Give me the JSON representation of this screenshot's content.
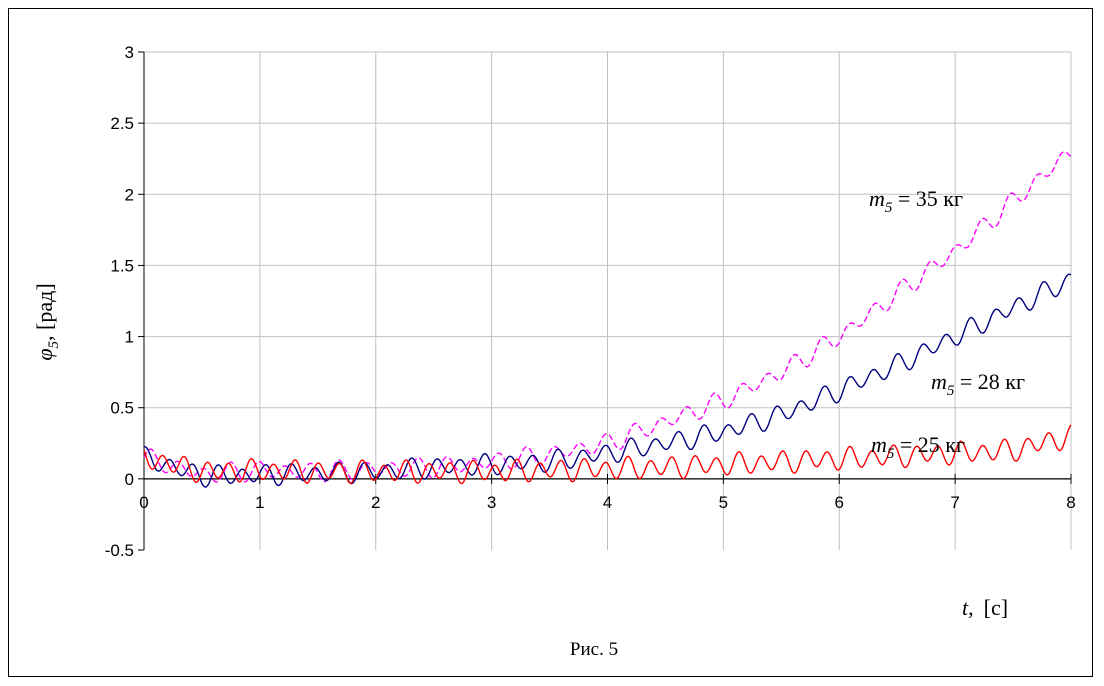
{
  "caption": "Рис. 5",
  "chart_data": {
    "type": "line",
    "xlabel": {
      "var": "t,",
      "unit": "[с]"
    },
    "ylabel": {
      "var": "φ",
      "sub": "5",
      "unit": ", [рад]"
    },
    "xlim": [
      0,
      8
    ],
    "ylim": [
      -0.5,
      3
    ],
    "x_ticks": [
      "0",
      "1",
      "2",
      "3",
      "4",
      "5",
      "6",
      "7",
      "8"
    ],
    "y_ticks": [
      "-0.5",
      "0",
      "0.5",
      "1",
      "1.5",
      "2",
      "2.5",
      "3"
    ],
    "grid": true,
    "annotations": [
      {
        "var": "m",
        "sub": "5",
        "text": " = 35 кг",
        "series": 0
      },
      {
        "var": "m",
        "sub": "5",
        "text": " = 28 кг",
        "series": 1
      },
      {
        "var": "m",
        "sub": "5",
        "text": " = 25 кг",
        "series": 2
      }
    ],
    "series": [
      {
        "color": "#ff00ff",
        "style": "dashed",
        "x": [
          0,
          0.5,
          1,
          1.5,
          2,
          2.5,
          3,
          3.5,
          4,
          4.5,
          5,
          5.5,
          6,
          6.5,
          7,
          7.5,
          8
        ],
        "y": [
          0.15,
          0.03,
          0.06,
          0.05,
          0.07,
          0.08,
          0.12,
          0.17,
          0.25,
          0.4,
          0.55,
          0.75,
          1.0,
          1.3,
          1.6,
          1.95,
          2.3
        ]
      },
      {
        "color": "#000080",
        "style": "solid",
        "x": [
          0,
          0.5,
          1,
          1.5,
          2,
          2.5,
          3,
          3.5,
          4,
          4.5,
          5,
          5.5,
          6,
          6.5,
          7,
          7.5,
          8
        ],
        "y": [
          0.15,
          0.02,
          0.03,
          0.04,
          0.05,
          0.08,
          0.1,
          0.12,
          0.18,
          0.25,
          0.33,
          0.45,
          0.62,
          0.8,
          1.0,
          1.2,
          1.4
        ]
      },
      {
        "color": "#ff0000",
        "style": "solid",
        "x": [
          0,
          0.5,
          1,
          1.5,
          2,
          2.5,
          3,
          3.5,
          4,
          4.5,
          5,
          5.5,
          6,
          6.5,
          7,
          7.5,
          8
        ],
        "y": [
          0.15,
          0.05,
          0.06,
          0.05,
          0.05,
          0.05,
          0.05,
          0.06,
          0.07,
          0.08,
          0.1,
          0.12,
          0.14,
          0.16,
          0.18,
          0.2,
          0.3
        ]
      }
    ]
  }
}
